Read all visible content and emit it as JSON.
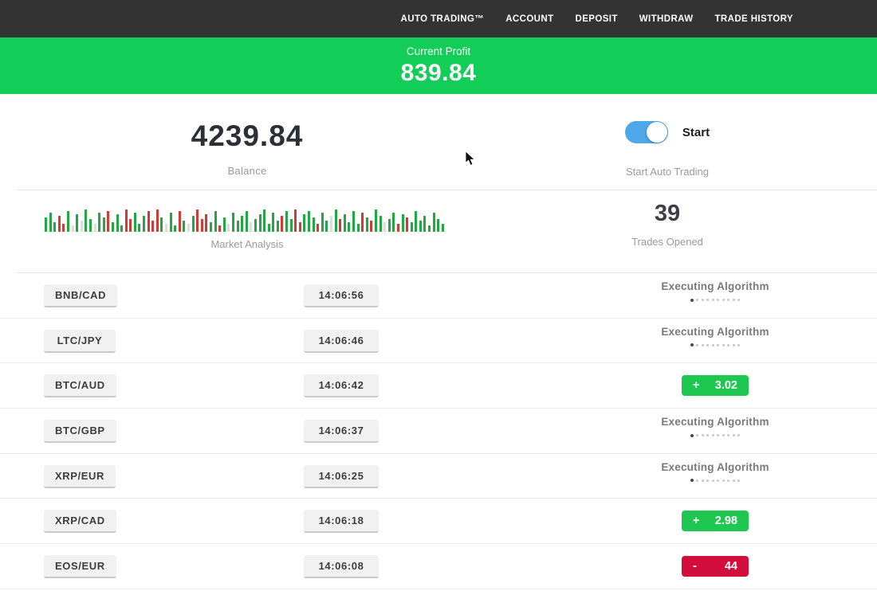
{
  "nav": {
    "items": [
      {
        "label": "AUTO TRADING™"
      },
      {
        "label": "ACCOUNT"
      },
      {
        "label": "DEPOSIT"
      },
      {
        "label": "WITHDRAW"
      },
      {
        "label": "TRADE HISTORY"
      }
    ]
  },
  "profit_banner": {
    "label": "Current Profit",
    "value": "839.84"
  },
  "summary": {
    "balance": {
      "value": "4239.84",
      "label": "Balance"
    },
    "auto_trading": {
      "toggle_state": "on",
      "toggle_label": "Start",
      "label": "Start Auto Trading"
    },
    "market_analysis": {
      "label": "Market Analysis"
    },
    "trades_opened": {
      "value": "39",
      "label": "Trades Opened"
    }
  },
  "chart_data": {
    "type": "bar",
    "title": "Market Analysis",
    "xlabel": "",
    "ylabel": "",
    "note": "decorative mini candlestick/volume strip, green=up red=down pale=neutral, heights in px of 33px max",
    "color_map": {
      "g": "#23a742",
      "r": "#d23b34",
      "p": "#d9e0d9"
    },
    "bars": [
      [
        18,
        "g"
      ],
      [
        24,
        "g"
      ],
      [
        12,
        "g"
      ],
      [
        20,
        "r"
      ],
      [
        10,
        "r"
      ],
      [
        26,
        "g"
      ],
      [
        8,
        "p"
      ],
      [
        22,
        "g"
      ],
      [
        14,
        "p"
      ],
      [
        28,
        "g"
      ],
      [
        16,
        "g"
      ],
      [
        10,
        "p"
      ],
      [
        24,
        "g"
      ],
      [
        18,
        "g"
      ],
      [
        26,
        "r"
      ],
      [
        12,
        "g"
      ],
      [
        22,
        "g"
      ],
      [
        8,
        "g"
      ],
      [
        28,
        "r"
      ],
      [
        16,
        "r"
      ],
      [
        24,
        "g"
      ],
      [
        10,
        "g"
      ],
      [
        20,
        "g"
      ],
      [
        26,
        "r"
      ],
      [
        14,
        "r"
      ],
      [
        28,
        "r"
      ],
      [
        18,
        "g"
      ],
      [
        10,
        "p"
      ],
      [
        24,
        "g"
      ],
      [
        8,
        "g"
      ],
      [
        26,
        "r"
      ],
      [
        14,
        "g"
      ],
      [
        10,
        "p"
      ],
      [
        20,
        "g"
      ],
      [
        28,
        "r"
      ],
      [
        16,
        "r"
      ],
      [
        22,
        "r"
      ],
      [
        12,
        "g"
      ],
      [
        26,
        "g"
      ],
      [
        8,
        "r"
      ],
      [
        18,
        "g"
      ],
      [
        10,
        "p"
      ],
      [
        24,
        "g"
      ],
      [
        14,
        "g"
      ],
      [
        20,
        "g"
      ],
      [
        26,
        "g"
      ],
      [
        12,
        "p"
      ],
      [
        16,
        "g"
      ],
      [
        22,
        "g"
      ],
      [
        28,
        "g"
      ],
      [
        10,
        "g"
      ],
      [
        24,
        "g"
      ],
      [
        14,
        "g"
      ],
      [
        20,
        "r"
      ],
      [
        26,
        "g"
      ],
      [
        16,
        "g"
      ],
      [
        28,
        "r"
      ],
      [
        12,
        "r"
      ],
      [
        22,
        "g"
      ],
      [
        26,
        "g"
      ],
      [
        18,
        "g"
      ],
      [
        10,
        "r"
      ],
      [
        24,
        "g"
      ],
      [
        14,
        "g"
      ],
      [
        20,
        "p"
      ],
      [
        28,
        "g"
      ],
      [
        16,
        "r"
      ],
      [
        22,
        "g"
      ],
      [
        12,
        "g"
      ],
      [
        26,
        "g"
      ],
      [
        10,
        "g"
      ],
      [
        24,
        "r"
      ],
      [
        18,
        "g"
      ],
      [
        14,
        "r"
      ],
      [
        28,
        "g"
      ],
      [
        20,
        "g"
      ],
      [
        12,
        "p"
      ],
      [
        16,
        "g"
      ],
      [
        24,
        "g"
      ],
      [
        10,
        "r"
      ],
      [
        22,
        "g"
      ],
      [
        18,
        "r"
      ],
      [
        12,
        "g"
      ],
      [
        26,
        "g"
      ],
      [
        14,
        "g"
      ],
      [
        20,
        "g"
      ],
      [
        8,
        "g"
      ],
      [
        24,
        "g"
      ],
      [
        16,
        "g"
      ],
      [
        10,
        "g"
      ]
    ]
  },
  "status_dots": {
    "count": 10,
    "active_index": 0
  },
  "trades": [
    {
      "pair": "BNB/CAD",
      "time": "14:06:56",
      "status": "Executing Algorithm",
      "result": null
    },
    {
      "pair": "LTC/JPY",
      "time": "14:06:46",
      "status": "Executing Algorithm",
      "result": null
    },
    {
      "pair": "BTC/AUD",
      "time": "14:06:42",
      "status": null,
      "result": {
        "sign": "+",
        "value": "3.02",
        "type": "gain"
      }
    },
    {
      "pair": "BTC/GBP",
      "time": "14:06:37",
      "status": "Executing Algorithm",
      "result": null
    },
    {
      "pair": "XRP/EUR",
      "time": "14:06:25",
      "status": "Executing Algorithm",
      "result": null
    },
    {
      "pair": "XRP/CAD",
      "time": "14:06:18",
      "status": null,
      "result": {
        "sign": "+",
        "value": "2.98",
        "type": "gain"
      }
    },
    {
      "pair": "EOS/EUR",
      "time": "14:06:08",
      "status": null,
      "result": {
        "sign": "-",
        "value": "44",
        "type": "loss"
      }
    }
  ],
  "colors": {
    "nav_bg": "#333333",
    "profit_green": "#12ce58",
    "toggle_blue": "#4fa8e9",
    "gain_green": "#1ec74f",
    "loss_red": "#d20f3c"
  }
}
